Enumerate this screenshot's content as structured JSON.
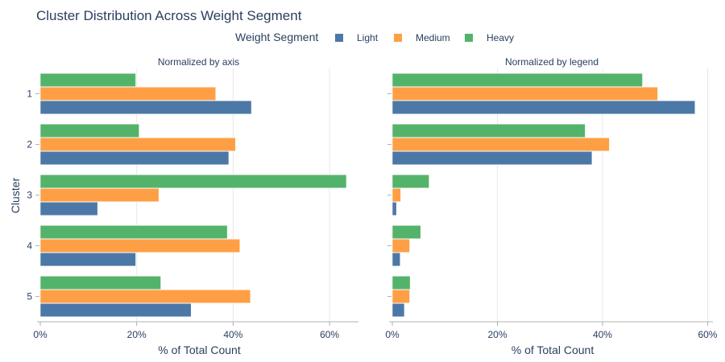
{
  "chart_data": {
    "type": "bar",
    "orientation": "horizontal",
    "title": "Cluster Distribution Across Weight Segment",
    "legend_title": "Weight Segment",
    "legend_position": "top-center",
    "ylabel": "Cluster",
    "categories": [
      "1",
      "2",
      "3",
      "4",
      "5"
    ],
    "series_colors": {
      "Light": "#4c78a8",
      "Medium": "#ff9f45",
      "Heavy": "#54b36a"
    },
    "panels": [
      {
        "subtitle": "Normalized by axis",
        "xlabel": "% of Total Count",
        "xlim": [
          0,
          66
        ],
        "xticks": [
          0,
          20,
          40,
          60
        ],
        "xtick_labels": [
          "0%",
          "20%",
          "40%",
          "60%"
        ],
        "series": [
          {
            "name": "Light",
            "values": [
              43.8,
              39.1,
              11.9,
              19.8,
              31.3
            ]
          },
          {
            "name": "Medium",
            "values": [
              36.4,
              40.5,
              24.6,
              41.4,
              43.6
            ]
          },
          {
            "name": "Heavy",
            "values": [
              19.8,
              20.5,
              63.5,
              38.8,
              25.0
            ]
          }
        ]
      },
      {
        "subtitle": "Normalized by legend",
        "xlabel": "% of Total Count",
        "xlim": [
          0,
          61
        ],
        "xticks": [
          0,
          20,
          40,
          60
        ],
        "xtick_labels": [
          "0%",
          "20%",
          "40%",
          "60%"
        ],
        "series": [
          {
            "name": "Light",
            "values": [
              57.6,
              38.0,
              0.8,
              1.5,
              2.3
            ]
          },
          {
            "name": "Medium",
            "values": [
              50.5,
              41.3,
              1.6,
              3.3,
              3.3
            ]
          },
          {
            "name": "Heavy",
            "values": [
              47.6,
              36.7,
              7.0,
              5.4,
              3.4
            ]
          }
        ]
      }
    ]
  }
}
